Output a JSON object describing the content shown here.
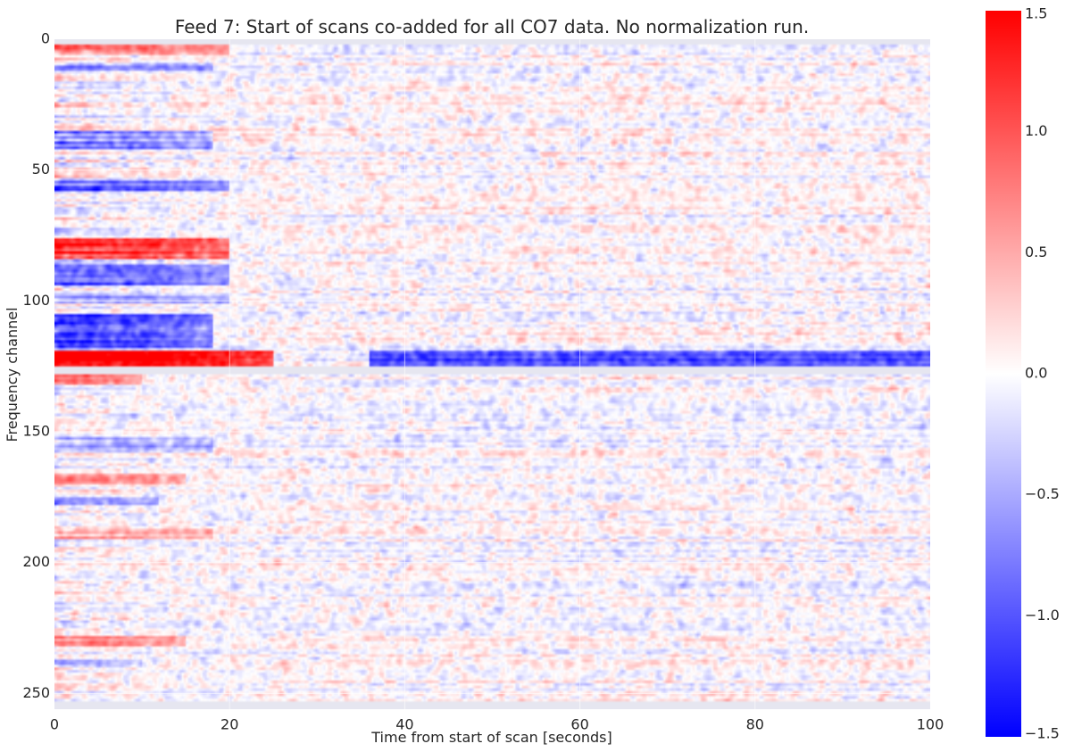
{
  "chart_data": {
    "type": "heatmap",
    "title": "Feed 7: Start of scans co-added for all CO7 data. No normalization run.",
    "xlabel": "Time from start of scan [seconds]",
    "ylabel": "Frequency channel",
    "xlim": [
      0,
      100
    ],
    "ylim": [
      256,
      0
    ],
    "x_ticks": [
      0,
      20,
      40,
      60,
      80,
      100
    ],
    "y_ticks": [
      0,
      50,
      100,
      150,
      200,
      250
    ],
    "x_tick_labels": [
      "0",
      "20",
      "40",
      "60",
      "80",
      "100"
    ],
    "y_tick_labels": [
      "0",
      "50",
      "100",
      "150",
      "200",
      "250"
    ],
    "colormap": "bwr",
    "colors": {
      "low": "#0000ff",
      "mid": "#ffffff",
      "high": "#ff0000",
      "masked": "#e6e6f0",
      "grid": "#ffffff"
    },
    "clim": [
      -1.5,
      1.5
    ],
    "colorbar": {
      "position": "right",
      "ticks": [
        1.5,
        1.0,
        0.5,
        0.0,
        -0.5,
        -1.0,
        -1.5
      ],
      "tick_labels": [
        "1.5",
        "1.0",
        "0.5",
        "0.0",
        "−0.5",
        "−1.0",
        "−1.5"
      ]
    },
    "masked_channels": [
      [
        0,
        2
      ],
      [
        125,
        128
      ],
      [
        253,
        256
      ]
    ],
    "features": [
      {
        "channels": [
          2,
          6
        ],
        "time": [
          0,
          20
        ],
        "value": 0.8
      },
      {
        "channels": [
          9,
          12
        ],
        "time": [
          0,
          18
        ],
        "value": -0.7
      },
      {
        "channels": [
          35,
          42
        ],
        "time": [
          0,
          18
        ],
        "value": -0.7
      },
      {
        "channels": [
          54,
          58
        ],
        "time": [
          0,
          20
        ],
        "value": -0.8
      },
      {
        "channels": [
          76,
          84
        ],
        "time": [
          0,
          20
        ],
        "value": 1.2
      },
      {
        "channels": [
          86,
          94
        ],
        "time": [
          0,
          20
        ],
        "value": -0.9
      },
      {
        "channels": [
          98,
          101
        ],
        "time": [
          0,
          20
        ],
        "value": -0.6
      },
      {
        "channels": [
          105,
          118
        ],
        "time": [
          0,
          18
        ],
        "value": -1.1
      },
      {
        "channels": [
          119,
          125
        ],
        "time": [
          0,
          25
        ],
        "value": 1.5
      },
      {
        "channels": [
          119,
          125
        ],
        "time": [
          36,
          100
        ],
        "value": -1.0
      },
      {
        "channels": [
          128,
          132
        ],
        "time": [
          0,
          10
        ],
        "value": 0.6
      },
      {
        "channels": [
          152,
          158
        ],
        "time": [
          0,
          18
        ],
        "value": -0.5
      },
      {
        "channels": [
          166,
          170
        ],
        "time": [
          0,
          15
        ],
        "value": 0.7
      },
      {
        "channels": [
          175,
          178
        ],
        "time": [
          0,
          12
        ],
        "value": -0.5
      },
      {
        "channels": [
          187,
          191
        ],
        "time": [
          0,
          18
        ],
        "value": 0.5
      },
      {
        "channels": [
          228,
          232
        ],
        "time": [
          0,
          15
        ],
        "value": 0.6
      },
      {
        "channels": [
          237,
          240
        ],
        "time": [
          0,
          10
        ],
        "value": -0.4
      }
    ]
  }
}
